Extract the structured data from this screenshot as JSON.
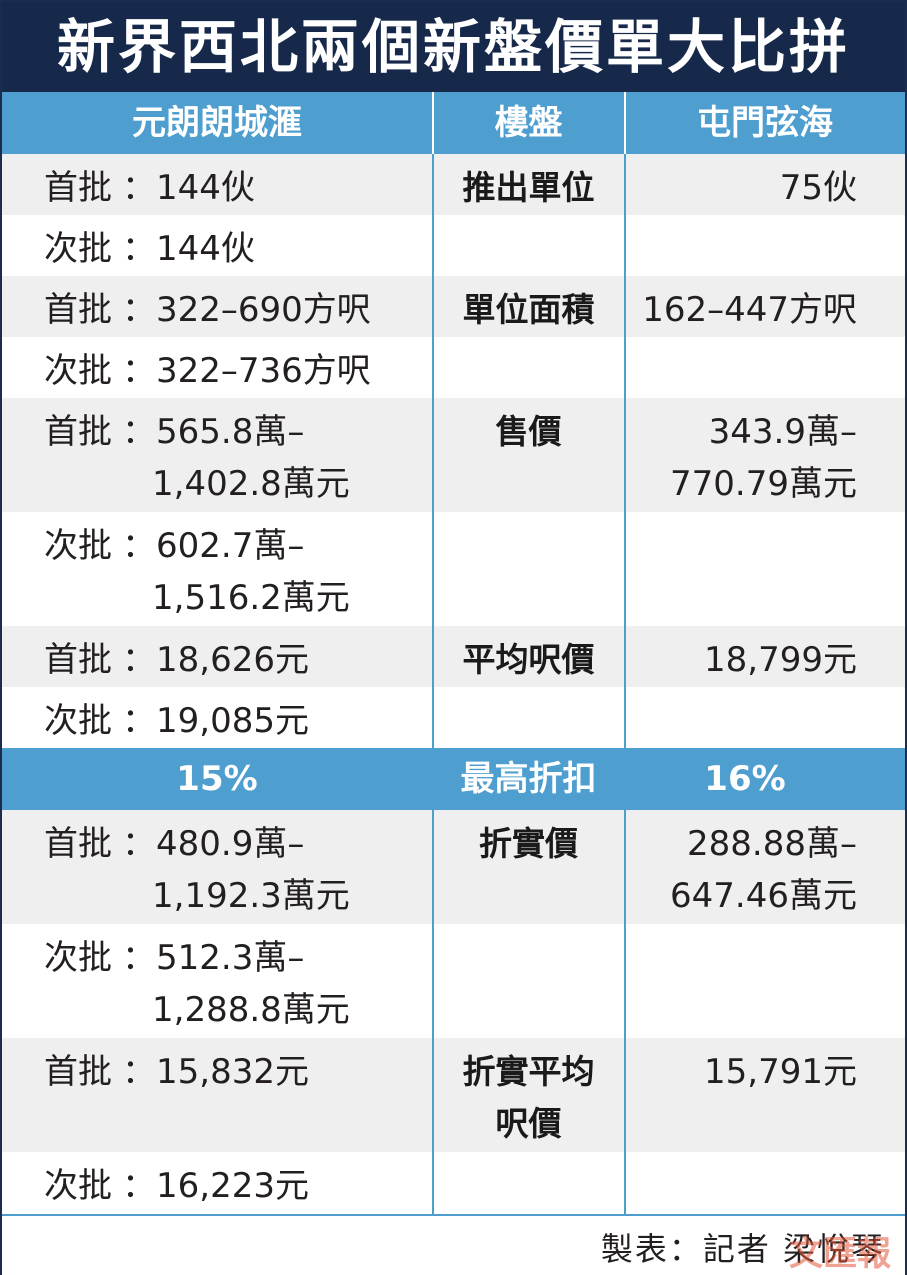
{
  "title": "新界西北兩個新盤價單大比拼",
  "header": {
    "left": "元朗朗城滙",
    "middle": "樓盤",
    "right": "屯門弦海"
  },
  "rows": {
    "r1": {
      "label": "首批",
      "value": "：144伙",
      "middle": "推出單位",
      "right": "75伙"
    },
    "r2": {
      "label": "次批",
      "value": "：144伙"
    },
    "r3": {
      "label": "首批",
      "value": "：322–690方呎",
      "middle": "單位面積",
      "right": "162–447方呎"
    },
    "r4": {
      "label": "次批",
      "value": "：322–736方呎"
    },
    "r5": {
      "label": "首批",
      "value1": "：565.8萬–",
      "value2": "1,402.8萬元",
      "middle": "售價",
      "right1": "343.9萬–",
      "right2": "770.79萬元"
    },
    "r6": {
      "label": "次批",
      "value1": "：602.7萬–",
      "value2": "1,516.2萬元"
    },
    "r7": {
      "label": "首批",
      "value": "：18,626元",
      "middle": "平均呎價",
      "right": "18,799元"
    },
    "r8": {
      "label": "次批",
      "value": "：19,085元"
    },
    "discount": {
      "left": "15%",
      "middle": "最高折扣",
      "right": "16%"
    },
    "r9": {
      "label": "首批",
      "value1": "：480.9萬–",
      "value2": "1,192.3萬元",
      "middle": "折實價",
      "right1": "288.88萬–",
      "right2": "647.46萬元"
    },
    "r10": {
      "label": "次批",
      "value1": "：512.3萬–",
      "value2": "1,288.8萬元"
    },
    "r11": {
      "label": "首批",
      "value": "：15,832元",
      "middle1": "折實平均",
      "middle2": "呎價",
      "right": "15,791元"
    },
    "r12": {
      "label": "次批",
      "value": "：16,223元"
    }
  },
  "footer": {
    "credit": "製表：記者 梁悅琴",
    "watermark": "文匯報"
  },
  "colors": {
    "title_bg": "#16294a",
    "header_bg": "#4f9ed0",
    "row_gray": "#efefef",
    "row_white": "#ffffff"
  }
}
